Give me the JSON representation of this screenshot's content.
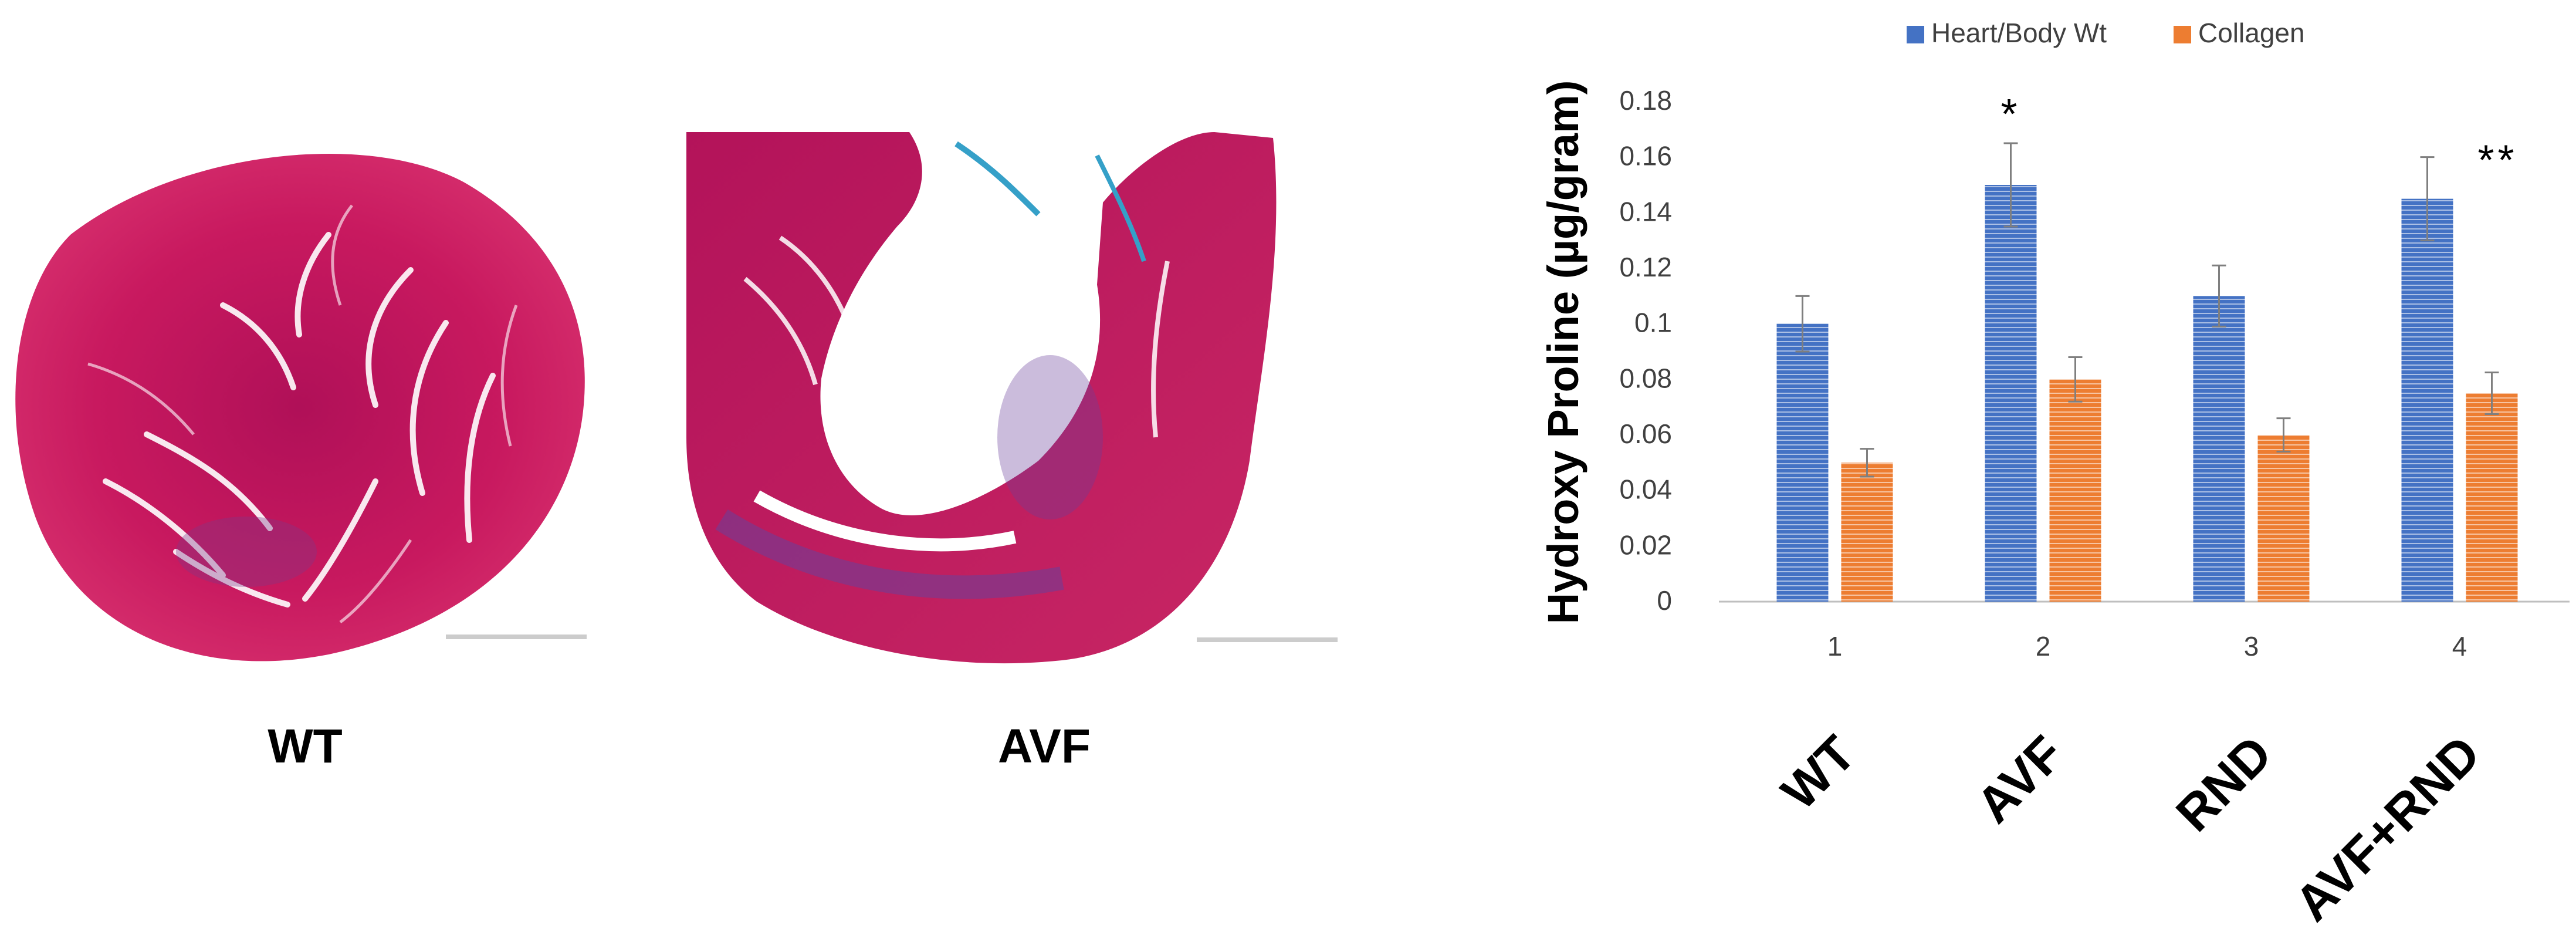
{
  "figure": {
    "panel_a": {
      "label": "WT"
    },
    "panel_b": {
      "label": "AVF"
    }
  },
  "chart_data": {
    "type": "bar",
    "categories": [
      "1",
      "2",
      "3",
      "4"
    ],
    "group_labels": [
      "WT",
      "AVF",
      "RND",
      "AVF+RND"
    ],
    "series": [
      {
        "name": "Heart/Body Wt",
        "values": [
          0.1,
          0.15,
          0.11,
          0.145
        ],
        "errors": [
          0.01,
          0.015,
          0.011,
          0.015
        ],
        "color": "#4472C4"
      },
      {
        "name": "Collagen",
        "values": [
          0.05,
          0.08,
          0.06,
          0.075
        ],
        "errors": [
          0.005,
          0.008,
          0.006,
          0.0075
        ],
        "color": "#ED7D31"
      }
    ],
    "ylabel": "Hydroxy Proline (µg/gram)",
    "ylim": [
      0,
      0.18
    ],
    "yticks": [
      "0",
      "0.02",
      "0.04",
      "0.06",
      "0.08",
      "0.1",
      "0.12",
      "0.14",
      "0.16",
      "0.18"
    ],
    "annotations": [
      {
        "text": "*",
        "category": "2"
      },
      {
        "text": "**",
        "category": "4"
      }
    ],
    "legend_position": "top",
    "grid": false
  }
}
